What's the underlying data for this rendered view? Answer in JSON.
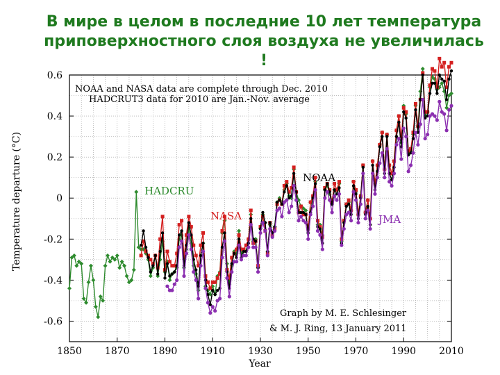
{
  "slide": {
    "title": "В мире в целом в последние 10 лет температура приповерхностного слоя воздуха не увеличилась !"
  },
  "chart_data": {
    "type": "line",
    "title": "",
    "xlabel": "Year",
    "ylabel": "Temperature departure (°C)",
    "xlim": [
      1850,
      2010
    ],
    "ylim": [
      -0.7,
      0.6
    ],
    "x_ticks": [
      1850,
      1870,
      1890,
      1910,
      1930,
      1950,
      1970,
      1990,
      2010
    ],
    "y_ticks": [
      -0.6,
      -0.4,
      -0.2,
      0,
      0.2,
      0.4,
      0.6
    ],
    "y_tick_labels": [
      "-0.6",
      "-0.4",
      "-0.2",
      "0",
      "0.2",
      "0.4",
      "0.6"
    ],
    "grid": true,
    "notes": {
      "data_line1": "NOAA and NASA data are complete through Dec. 2010",
      "data_line2": "HADCRUT3 data for 2010 are Jan.-Nov. average",
      "credit_line1": "Graph by M. E. Schlesinger",
      "credit_line2": "& M. J. Ring, 13 January 2011"
    },
    "series": [
      {
        "name": "HADCRU",
        "color": "#2e8b2e",
        "x": [
          1850,
          1851,
          1852,
          1853,
          1854,
          1855,
          1856,
          1857,
          1858,
          1859,
          1860,
          1861,
          1862,
          1863,
          1864,
          1865,
          1866,
          1867,
          1868,
          1869,
          1870,
          1871,
          1872,
          1873,
          1874,
          1875,
          1876,
          1877,
          1878,
          1879,
          1880,
          1881,
          1882,
          1883,
          1884,
          1885,
          1886,
          1887,
          1888,
          1889,
          1890,
          1891,
          1892,
          1893,
          1894,
          1895,
          1896,
          1897,
          1898,
          1899,
          1900,
          1901,
          1902,
          1903,
          1904,
          1905,
          1906,
          1907,
          1908,
          1909,
          1910,
          1911,
          1912,
          1913,
          1914,
          1915,
          1916,
          1917,
          1918,
          1919,
          1920,
          1921,
          1922,
          1923,
          1924,
          1925,
          1926,
          1927,
          1928,
          1929,
          1930,
          1931,
          1932,
          1933,
          1934,
          1935,
          1936,
          1937,
          1938,
          1939,
          1940,
          1941,
          1942,
          1943,
          1944,
          1945,
          1946,
          1947,
          1948,
          1949,
          1950,
          1951,
          1952,
          1953,
          1954,
          1955,
          1956,
          1957,
          1958,
          1959,
          1960,
          1961,
          1962,
          1963,
          1964,
          1965,
          1966,
          1967,
          1968,
          1969,
          1970,
          1971,
          1972,
          1973,
          1974,
          1975,
          1976,
          1977,
          1978,
          1979,
          1980,
          1981,
          1982,
          1983,
          1984,
          1985,
          1986,
          1987,
          1988,
          1989,
          1990,
          1991,
          1992,
          1993,
          1994,
          1995,
          1996,
          1997,
          1998,
          1999,
          2000,
          2001,
          2002,
          2003,
          2004,
          2005,
          2006,
          2007,
          2008,
          2009,
          2010
        ],
        "y": [
          -0.44,
          -0.29,
          -0.28,
          -0.33,
          -0.31,
          -0.32,
          -0.49,
          -0.51,
          -0.41,
          -0.33,
          -0.4,
          -0.53,
          -0.58,
          -0.48,
          -0.5,
          -0.33,
          -0.28,
          -0.31,
          -0.29,
          -0.3,
          -0.28,
          -0.34,
          -0.31,
          -0.33,
          -0.38,
          -0.41,
          -0.4,
          -0.35,
          0.03,
          -0.24,
          -0.25,
          -0.25,
          -0.27,
          -0.3,
          -0.38,
          -0.34,
          -0.28,
          -0.38,
          -0.3,
          -0.21,
          -0.36,
          -0.31,
          -0.4,
          -0.37,
          -0.36,
          -0.34,
          -0.2,
          -0.18,
          -0.34,
          -0.25,
          -0.15,
          -0.22,
          -0.33,
          -0.37,
          -0.45,
          -0.28,
          -0.22,
          -0.43,
          -0.45,
          -0.47,
          -0.43,
          -0.47,
          -0.38,
          -0.36,
          -0.17,
          -0.11,
          -0.32,
          -0.42,
          -0.33,
          -0.26,
          -0.27,
          -0.16,
          -0.27,
          -0.26,
          -0.26,
          -0.2,
          -0.08,
          -0.21,
          -0.2,
          -0.34,
          -0.15,
          -0.08,
          -0.12,
          -0.26,
          -0.13,
          -0.18,
          -0.14,
          -0.02,
          0.0,
          -0.02,
          0.04,
          0.07,
          0.01,
          0.0,
          0.14,
          0.03,
          -0.01,
          -0.04,
          -0.05,
          -0.06,
          -0.17,
          -0.02,
          0.01,
          0.08,
          -0.13,
          -0.13,
          -0.18,
          0.04,
          0.06,
          0.02,
          -0.03,
          0.04,
          0.04,
          0.07,
          -0.21,
          -0.11,
          -0.03,
          -0.02,
          -0.06,
          0.08,
          0.03,
          -0.08,
          0.01,
          0.16,
          -0.07,
          -0.01,
          -0.1,
          0.18,
          0.07,
          0.16,
          0.26,
          0.32,
          0.14,
          0.31,
          0.16,
          0.12,
          0.18,
          0.33,
          0.4,
          0.27,
          0.45,
          0.41,
          0.22,
          0.23,
          0.31,
          0.45,
          0.35,
          0.52,
          0.63,
          0.4,
          0.42,
          0.54,
          0.59,
          0.58,
          0.53,
          0.54,
          0.56,
          0.52,
          0.44,
          0.5,
          0.51
        ]
      },
      {
        "name": "NASA",
        "color": "#d42020",
        "x": [
          1880,
          1881,
          1882,
          1883,
          1884,
          1885,
          1886,
          1887,
          1888,
          1889,
          1890,
          1891,
          1892,
          1893,
          1894,
          1895,
          1896,
          1897,
          1898,
          1899,
          1900,
          1901,
          1902,
          1903,
          1904,
          1905,
          1906,
          1907,
          1908,
          1909,
          1910,
          1911,
          1912,
          1913,
          1914,
          1915,
          1916,
          1917,
          1918,
          1919,
          1920,
          1921,
          1922,
          1923,
          1924,
          1925,
          1926,
          1927,
          1928,
          1929,
          1930,
          1931,
          1932,
          1933,
          1934,
          1935,
          1936,
          1937,
          1938,
          1939,
          1940,
          1941,
          1942,
          1943,
          1944,
          1945,
          1946,
          1947,
          1948,
          1949,
          1950,
          1951,
          1952,
          1953,
          1954,
          1955,
          1956,
          1957,
          1958,
          1959,
          1960,
          1961,
          1962,
          1963,
          1964,
          1965,
          1966,
          1967,
          1968,
          1969,
          1970,
          1971,
          1972,
          1973,
          1974,
          1975,
          1976,
          1977,
          1978,
          1979,
          1980,
          1981,
          1982,
          1983,
          1984,
          1985,
          1986,
          1987,
          1988,
          1989,
          1990,
          1991,
          1992,
          1993,
          1994,
          1995,
          1996,
          1997,
          1998,
          1999,
          2000,
          2001,
          2002,
          2003,
          2004,
          2005,
          2006,
          2007,
          2008,
          2009,
          2010
        ],
        "y": [
          -0.28,
          -0.21,
          -0.26,
          -0.28,
          -0.3,
          -0.32,
          -0.28,
          -0.34,
          -0.2,
          -0.09,
          -0.35,
          -0.26,
          -0.31,
          -0.33,
          -0.33,
          -0.27,
          -0.13,
          -0.11,
          -0.29,
          -0.18,
          -0.09,
          -0.14,
          -0.23,
          -0.28,
          -0.33,
          -0.23,
          -0.17,
          -0.38,
          -0.41,
          -0.44,
          -0.41,
          -0.41,
          -0.39,
          -0.37,
          -0.16,
          -0.09,
          -0.35,
          -0.39,
          -0.29,
          -0.27,
          -0.25,
          -0.18,
          -0.25,
          -0.25,
          -0.23,
          -0.2,
          -0.06,
          -0.22,
          -0.21,
          -0.33,
          -0.14,
          -0.09,
          -0.16,
          -0.27,
          -0.12,
          -0.18,
          -0.15,
          -0.03,
          -0.01,
          -0.03,
          0.06,
          0.08,
          0.03,
          0.05,
          0.15,
          0.03,
          -0.07,
          -0.04,
          -0.08,
          -0.08,
          -0.15,
          -0.02,
          0.01,
          0.1,
          -0.11,
          -0.14,
          -0.19,
          0.05,
          0.07,
          0.04,
          -0.02,
          0.07,
          0.04,
          0.08,
          -0.2,
          -0.11,
          -0.03,
          -0.01,
          -0.06,
          0.08,
          0.04,
          -0.08,
          0.01,
          0.16,
          -0.07,
          -0.01,
          -0.1,
          0.18,
          0.07,
          0.16,
          0.26,
          0.32,
          0.14,
          0.31,
          0.16,
          0.12,
          0.18,
          0.33,
          0.4,
          0.29,
          0.44,
          0.42,
          0.23,
          0.24,
          0.32,
          0.46,
          0.35,
          0.48,
          0.61,
          0.42,
          0.42,
          0.55,
          0.63,
          0.62,
          0.54,
          0.68,
          0.64,
          0.66,
          0.54,
          0.64,
          0.66
        ]
      },
      {
        "name": "NOAA",
        "color": "#000000",
        "x": [
          1880,
          1881,
          1882,
          1883,
          1884,
          1885,
          1886,
          1887,
          1888,
          1889,
          1890,
          1891,
          1892,
          1893,
          1894,
          1895,
          1896,
          1897,
          1898,
          1899,
          1900,
          1901,
          1902,
          1903,
          1904,
          1905,
          1906,
          1907,
          1908,
          1909,
          1910,
          1911,
          1912,
          1913,
          1914,
          1915,
          1916,
          1917,
          1918,
          1919,
          1920,
          1921,
          1922,
          1923,
          1924,
          1925,
          1926,
          1927,
          1928,
          1929,
          1930,
          1931,
          1932,
          1933,
          1934,
          1935,
          1936,
          1937,
          1938,
          1939,
          1940,
          1941,
          1942,
          1943,
          1944,
          1945,
          1946,
          1947,
          1948,
          1949,
          1950,
          1951,
          1952,
          1953,
          1954,
          1955,
          1956,
          1957,
          1958,
          1959,
          1960,
          1961,
          1962,
          1963,
          1964,
          1965,
          1966,
          1967,
          1968,
          1969,
          1970,
          1971,
          1972,
          1973,
          1974,
          1975,
          1976,
          1977,
          1978,
          1979,
          1980,
          1981,
          1982,
          1983,
          1984,
          1985,
          1986,
          1987,
          1988,
          1989,
          1990,
          1991,
          1992,
          1993,
          1994,
          1995,
          1996,
          1997,
          1998,
          1999,
          2000,
          2001,
          2002,
          2003,
          2004,
          2005,
          2006,
          2007,
          2008,
          2009,
          2010
        ],
        "y": [
          -0.23,
          -0.16,
          -0.24,
          -0.29,
          -0.36,
          -0.33,
          -0.28,
          -0.37,
          -0.26,
          -0.17,
          -0.39,
          -0.32,
          -0.38,
          -0.37,
          -0.36,
          -0.33,
          -0.18,
          -0.16,
          -0.33,
          -0.23,
          -0.12,
          -0.18,
          -0.3,
          -0.35,
          -0.43,
          -0.28,
          -0.22,
          -0.4,
          -0.47,
          -0.52,
          -0.45,
          -0.47,
          -0.45,
          -0.44,
          -0.24,
          -0.17,
          -0.36,
          -0.44,
          -0.32,
          -0.27,
          -0.29,
          -0.2,
          -0.29,
          -0.26,
          -0.26,
          -0.22,
          -0.1,
          -0.2,
          -0.21,
          -0.34,
          -0.15,
          -0.07,
          -0.12,
          -0.26,
          -0.12,
          -0.17,
          -0.14,
          -0.02,
          -0.01,
          -0.03,
          0.03,
          0.06,
          0.0,
          0.01,
          0.12,
          0.03,
          -0.07,
          -0.07,
          -0.07,
          -0.08,
          -0.17,
          -0.07,
          0.0,
          0.07,
          -0.14,
          -0.15,
          -0.22,
          0.04,
          0.07,
          0.03,
          -0.03,
          0.04,
          0.02,
          0.05,
          -0.22,
          -0.12,
          -0.04,
          -0.03,
          -0.08,
          0.06,
          0.02,
          -0.1,
          0.0,
          0.15,
          -0.08,
          -0.04,
          -0.13,
          0.16,
          0.04,
          0.13,
          0.25,
          0.3,
          0.12,
          0.3,
          0.12,
          0.09,
          0.15,
          0.3,
          0.37,
          0.25,
          0.42,
          0.39,
          0.21,
          0.22,
          0.29,
          0.43,
          0.32,
          0.48,
          0.6,
          0.39,
          0.4,
          0.51,
          0.56,
          0.56,
          0.51,
          0.6,
          0.58,
          0.57,
          0.48,
          0.58,
          0.62
        ]
      },
      {
        "name": "JMA",
        "color": "#8b2fb0",
        "x": [
          1891,
          1892,
          1893,
          1894,
          1895,
          1896,
          1897,
          1898,
          1899,
          1900,
          1901,
          1902,
          1903,
          1904,
          1905,
          1906,
          1907,
          1908,
          1909,
          1910,
          1911,
          1912,
          1913,
          1914,
          1915,
          1916,
          1917,
          1918,
          1919,
          1920,
          1921,
          1922,
          1923,
          1924,
          1925,
          1926,
          1927,
          1928,
          1929,
          1930,
          1931,
          1932,
          1933,
          1934,
          1935,
          1936,
          1937,
          1938,
          1939,
          1940,
          1941,
          1942,
          1943,
          1944,
          1945,
          1946,
          1947,
          1948,
          1949,
          1950,
          1951,
          1952,
          1953,
          1954,
          1955,
          1956,
          1957,
          1958,
          1959,
          1960,
          1961,
          1962,
          1963,
          1964,
          1965,
          1966,
          1967,
          1968,
          1969,
          1970,
          1971,
          1972,
          1973,
          1974,
          1975,
          1976,
          1977,
          1978,
          1979,
          1980,
          1981,
          1982,
          1983,
          1984,
          1985,
          1986,
          1987,
          1988,
          1989,
          1990,
          1991,
          1992,
          1993,
          1994,
          1995,
          1996,
          1997,
          1998,
          1999,
          2000,
          2001,
          2002,
          2003,
          2004,
          2005,
          2006,
          2007,
          2008,
          2009,
          2010
        ],
        "y": [
          -0.43,
          -0.45,
          -0.45,
          -0.42,
          -0.4,
          -0.24,
          -0.21,
          -0.38,
          -0.27,
          -0.18,
          -0.25,
          -0.36,
          -0.4,
          -0.49,
          -0.33,
          -0.26,
          -0.44,
          -0.51,
          -0.56,
          -0.53,
          -0.55,
          -0.5,
          -0.49,
          -0.29,
          -0.21,
          -0.39,
          -0.48,
          -0.36,
          -0.31,
          -0.31,
          -0.23,
          -0.3,
          -0.28,
          -0.28,
          -0.24,
          -0.13,
          -0.24,
          -0.24,
          -0.36,
          -0.17,
          -0.12,
          -0.16,
          -0.28,
          -0.15,
          -0.19,
          -0.16,
          -0.06,
          -0.05,
          -0.09,
          -0.02,
          -0.01,
          -0.07,
          -0.04,
          0.06,
          -0.01,
          -0.11,
          -0.09,
          -0.11,
          -0.12,
          -0.2,
          -0.08,
          -0.04,
          0.04,
          -0.16,
          -0.18,
          -0.25,
          0.0,
          0.03,
          -0.01,
          -0.07,
          0.01,
          -0.01,
          0.02,
          -0.23,
          -0.15,
          -0.08,
          -0.07,
          -0.11,
          0.03,
          -0.01,
          -0.12,
          -0.03,
          0.12,
          -0.1,
          -0.06,
          -0.15,
          0.12,
          0.02,
          0.1,
          0.17,
          0.22,
          0.1,
          0.24,
          0.08,
          0.06,
          0.12,
          0.26,
          0.29,
          0.19,
          0.34,
          0.3,
          0.13,
          0.16,
          0.22,
          0.32,
          0.26,
          0.36,
          0.48,
          0.29,
          0.31,
          0.4,
          0.41,
          0.4,
          0.38,
          0.47,
          0.42,
          0.41,
          0.33,
          0.43,
          0.45
        ]
      }
    ]
  }
}
